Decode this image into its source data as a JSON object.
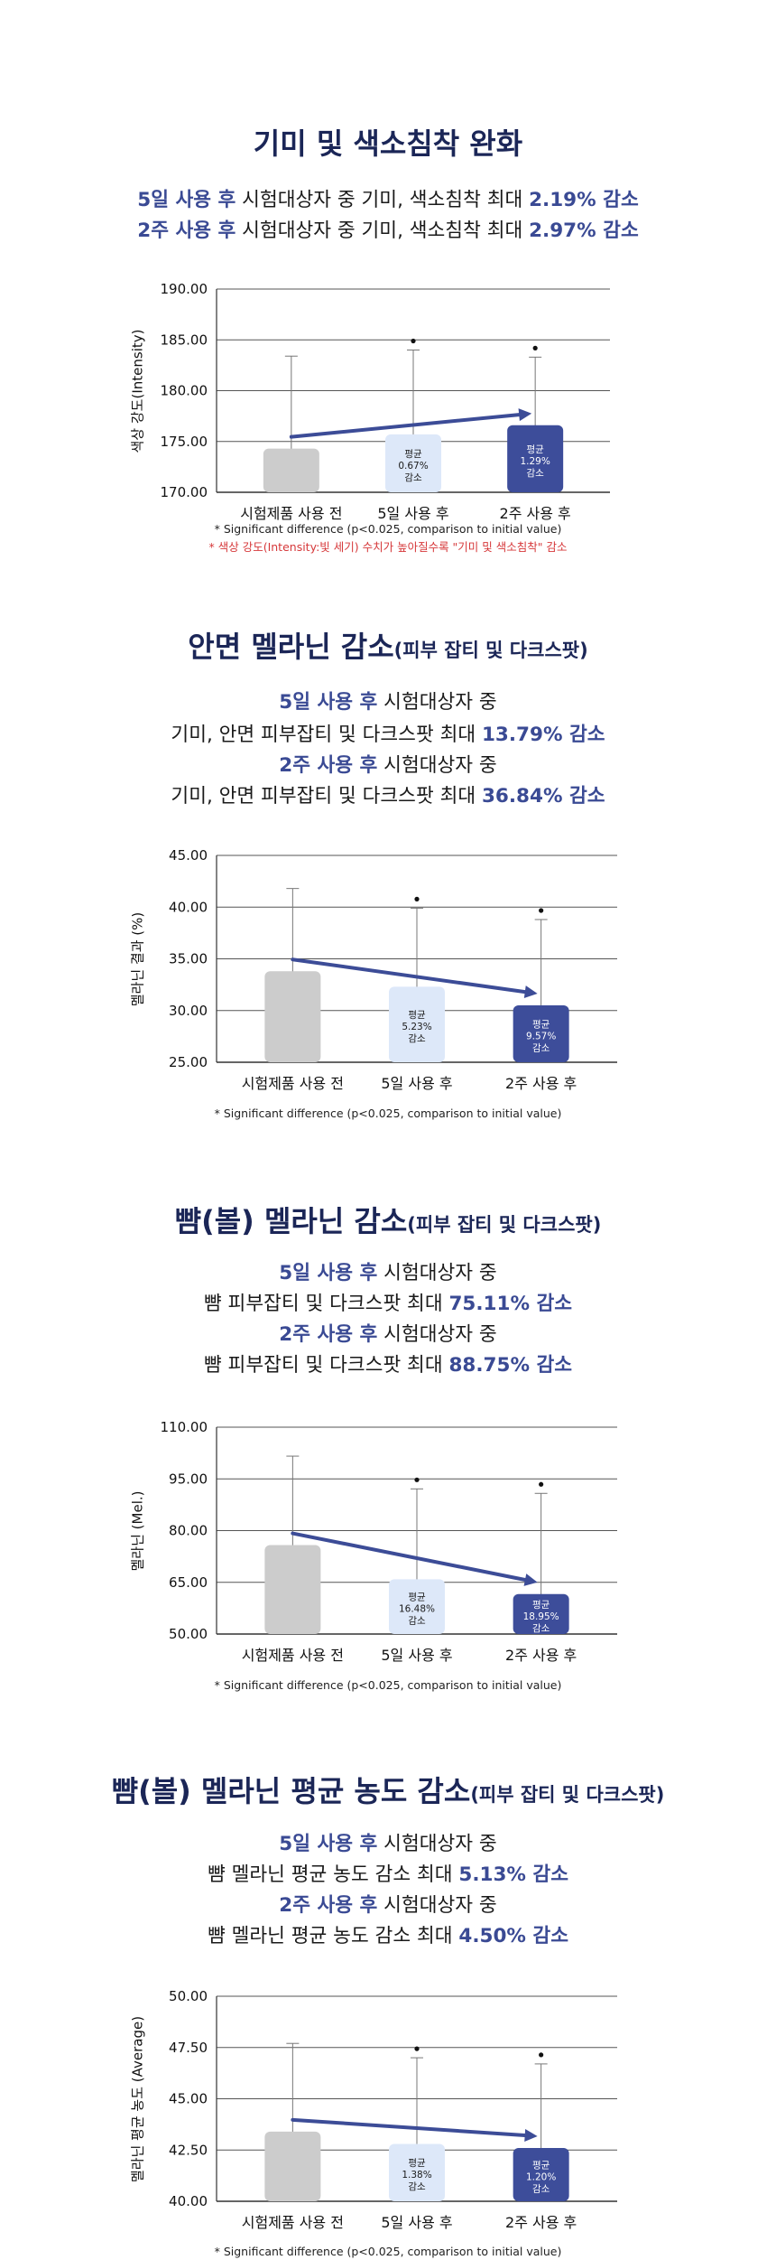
{
  "colors": {
    "title": "#1b2657",
    "accent": "#3a4a94",
    "bar_before": "#cccccc",
    "bar_5day": "#dde8f9",
    "bar_2week": "#3d4d9a",
    "trend_arrow": "#3c4c97",
    "red_note": "#d6383a"
  },
  "sections": [
    {
      "title": "기미 및 색소침착 완화",
      "title_sub": "",
      "lines": [
        {
          "em": "5일 사용 후",
          "mid": " 시험대상자 중 기미, 색소침착 최대 ",
          "result": "2.19% 감소"
        },
        {
          "em": "2주 사용 후",
          "mid": " 시험대상자 중 기미, 색소침착 최대 ",
          "result": "2.97% 감소"
        }
      ],
      "chart_data": {
        "type": "bar",
        "ylabel": "색상 강도(Intensity)",
        "ylim": [
          170,
          190
        ],
        "yticks": [
          "190.00",
          "185.00",
          "180.00",
          "175.00",
          "170.00"
        ],
        "categories": [
          "시험제품 사용 전",
          "5일 사용 후",
          "2주 사용 후"
        ],
        "values": [
          174.3,
          175.7,
          176.6
        ],
        "error_top": [
          183.4,
          184.0,
          183.3
        ],
        "significant": [
          false,
          true,
          true
        ],
        "bar_labels": [
          "",
          "평균\n0.67%\n감소",
          "평균\n1.29%\n감소"
        ],
        "trend_direction": "up",
        "notes": [
          "* Significant difference (p<0.025, comparison to initial value)"
        ],
        "red_note": "* 색상 강도(Intensity:빛 세기) 수치가 높아질수록 \"기미 및 색소침착\" 감소"
      }
    },
    {
      "title": "안면 멜라닌 감소",
      "title_sub": "(피부 잡티 및 다크스팟)",
      "lines": [
        {
          "em": "5일 사용 후",
          "mid": " 시험대상자 중",
          "result": ""
        },
        {
          "em": "",
          "mid": "기미, 안면 피부잡티 및 다크스팟 최대 ",
          "result": "13.79% 감소"
        },
        {
          "em": "2주 사용 후",
          "mid": " 시험대상자 중",
          "result": ""
        },
        {
          "em": "",
          "mid": "기미, 안면 피부잡티 및 다크스팟 최대 ",
          "result": "36.84% 감소"
        }
      ],
      "chart_data": {
        "type": "bar",
        "ylabel": "멜라닌 결과 (%)",
        "ylim": [
          25,
          45
        ],
        "yticks": [
          "45.00",
          "40.00",
          "35.00",
          "30.00",
          "25.00"
        ],
        "categories": [
          "시험제품 사용 전",
          "5일 사용 후",
          "2주 사용 후"
        ],
        "values": [
          33.8,
          32.3,
          30.5
        ],
        "error_top": [
          41.8,
          39.9,
          38.8
        ],
        "significant": [
          false,
          true,
          true
        ],
        "bar_labels": [
          "",
          "평균\n5.23%\n감소",
          "평균\n9.57%\n감소"
        ],
        "trend_direction": "down",
        "notes": [
          "* Significant difference (p<0.025, comparison to initial value)"
        ],
        "red_note": ""
      }
    },
    {
      "title": "뺨(볼) 멜라닌 감소",
      "title_sub": "(피부 잡티 및 다크스팟)",
      "lines": [
        {
          "em": "5일 사용 후",
          "mid": " 시험대상자 중",
          "result": ""
        },
        {
          "em": "",
          "mid": "뺨 피부잡티 및 다크스팟 최대 ",
          "result": "75.11% 감소"
        },
        {
          "em": "2주 사용 후",
          "mid": " 시험대상자 중",
          "result": ""
        },
        {
          "em": "",
          "mid": "뺨 피부잡티 및 다크스팟 최대 ",
          "result": "88.75% 감소"
        }
      ],
      "chart_data": {
        "type": "bar",
        "ylabel": "멜라닌 (Mel.)",
        "ylim": [
          50,
          110
        ],
        "yticks": [
          "110.00",
          "95.00",
          "80.00",
          "65.00",
          "50.00"
        ],
        "categories": [
          "시험제품 사용 전",
          "5일 사용 후",
          "2주 사용 후"
        ],
        "values": [
          75.8,
          65.9,
          61.6
        ],
        "error_top": [
          101.6,
          92.1,
          90.8
        ],
        "significant": [
          false,
          true,
          true
        ],
        "bar_labels": [
          "",
          "평균\n16.48%\n감소",
          "평균\n18.95%\n감소"
        ],
        "trend_direction": "down",
        "notes": [
          "* Significant difference (p<0.025, comparison to initial value)"
        ],
        "red_note": ""
      }
    },
    {
      "title": "뺨(볼) 멜라닌 평균 농도 감소",
      "title_sub": "(피부 잡티 및 다크스팟)",
      "lines": [
        {
          "em": "5일 사용 후",
          "mid": " 시험대상자 중",
          "result": ""
        },
        {
          "em": "",
          "mid": "뺨 멜라닌 평균 농도 감소 최대 ",
          "result": "5.13% 감소"
        },
        {
          "em": "2주 사용 후",
          "mid": " 시험대상자 중",
          "result": ""
        },
        {
          "em": "",
          "mid": "뺨 멜라닌 평균 농도 감소 최대 ",
          "result": "4.50% 감소"
        }
      ],
      "chart_data": {
        "type": "bar",
        "ylabel": "멜라닌 평균 농도 (Average)",
        "ylim": [
          40,
          50
        ],
        "yticks": [
          "50.00",
          "47.50",
          "45.00",
          "42.50",
          "40.00"
        ],
        "categories": [
          "시험제품 사용 전",
          "5일 사용 후",
          "2주 사용 후"
        ],
        "values": [
          43.4,
          42.8,
          42.6
        ],
        "error_top": [
          47.7,
          47.0,
          46.7
        ],
        "significant": [
          false,
          true,
          true
        ],
        "bar_labels": [
          "",
          "평균\n1.38%\n감소",
          "평균\n1.20%\n감소"
        ],
        "trend_direction": "down",
        "notes": [
          "* Significant difference (p<0.025, comparison to initial value)"
        ],
        "red_note": ""
      }
    }
  ]
}
